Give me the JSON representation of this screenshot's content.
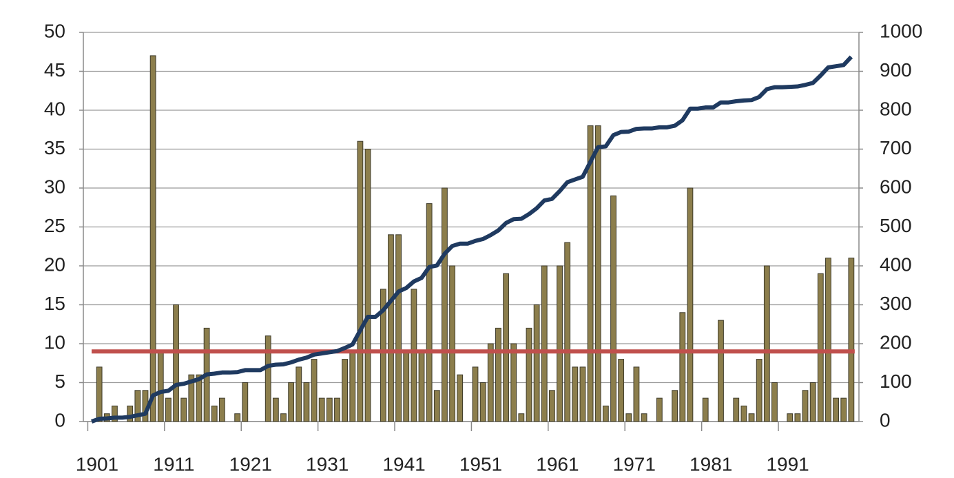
{
  "chart_data": {
    "type": "bar",
    "categories": [
      "1901",
      null,
      null,
      null,
      null,
      null,
      null,
      null,
      null,
      null,
      "1911",
      null,
      null,
      null,
      null,
      null,
      null,
      null,
      null,
      null,
      "1921",
      null,
      null,
      null,
      null,
      null,
      null,
      null,
      null,
      null,
      "1931",
      null,
      null,
      null,
      null,
      null,
      null,
      null,
      null,
      null,
      "1941",
      null,
      null,
      null,
      null,
      null,
      null,
      null,
      null,
      null,
      "1951",
      null,
      null,
      null,
      null,
      null,
      null,
      null,
      null,
      null,
      "1961",
      null,
      null,
      null,
      null,
      null,
      null,
      null,
      null,
      null,
      "1971",
      null,
      null,
      null,
      null,
      null,
      null,
      null,
      null,
      null,
      "1981",
      null,
      null,
      null,
      null,
      null,
      null,
      null,
      null,
      null,
      "1991",
      null,
      null,
      null,
      null,
      null,
      null,
      null,
      null,
      null
    ],
    "series": [
      {
        "type": "bar",
        "color": "#8c7e4c",
        "values": [
          0,
          7,
          1,
          2,
          0,
          2,
          4,
          4,
          47,
          9,
          3,
          15,
          3,
          6,
          6,
          12,
          2,
          3,
          0,
          1,
          5,
          0,
          0,
          11,
          3,
          1,
          5,
          7,
          5,
          8,
          3,
          3,
          3,
          8,
          9,
          36,
          35,
          0,
          17,
          24,
          24,
          9,
          17,
          9,
          28,
          4,
          30,
          20,
          6,
          0,
          7,
          5,
          10,
          12,
          19,
          10,
          1,
          12,
          15,
          20,
          4,
          20,
          23,
          7,
          7,
          38,
          38,
          2,
          29,
          8,
          1,
          7,
          1,
          0,
          3,
          0,
          4,
          14,
          30,
          0,
          3,
          0,
          13,
          0,
          3,
          2,
          1,
          8,
          20,
          5,
          0,
          1,
          1,
          4,
          5,
          19,
          21,
          3,
          3,
          21
        ]
      },
      {
        "type": "line",
        "axis": "y2",
        "color": "#1f3a60",
        "values": [
          0,
          7,
          8,
          10,
          10,
          12,
          16,
          20,
          67,
          76,
          79,
          94,
          97,
          103,
          109,
          121,
          123,
          126,
          126,
          127,
          132,
          132,
          132,
          143,
          146,
          147,
          152,
          159,
          164,
          172,
          175,
          178,
          181,
          189,
          198,
          234,
          269,
          269,
          286,
          310,
          334,
          343,
          360,
          369,
          397,
          401,
          431,
          451,
          457,
          457,
          464,
          469,
          479,
          491,
          510,
          520,
          521,
          533,
          548,
          568,
          572,
          592,
          615,
          622,
          629,
          667,
          705,
          707,
          736,
          744,
          745,
          752,
          753,
          753,
          756,
          756,
          760,
          774,
          804,
          804,
          807,
          807,
          820,
          820,
          823,
          825,
          826,
          834,
          854,
          859,
          859,
          860,
          861,
          865,
          870,
          889,
          910,
          913,
          916,
          937
        ]
      }
    ],
    "reference_line": {
      "value": 9,
      "color": "#c0504d"
    },
    "ylim": [
      0,
      50
    ],
    "yticks": [
      0,
      5,
      10,
      15,
      20,
      25,
      30,
      35,
      40,
      45,
      50
    ],
    "y2lim": [
      0,
      1000
    ],
    "y2ticks": [
      0,
      100,
      200,
      300,
      400,
      500,
      600,
      700,
      800,
      900,
      1000
    ],
    "grid": true
  }
}
